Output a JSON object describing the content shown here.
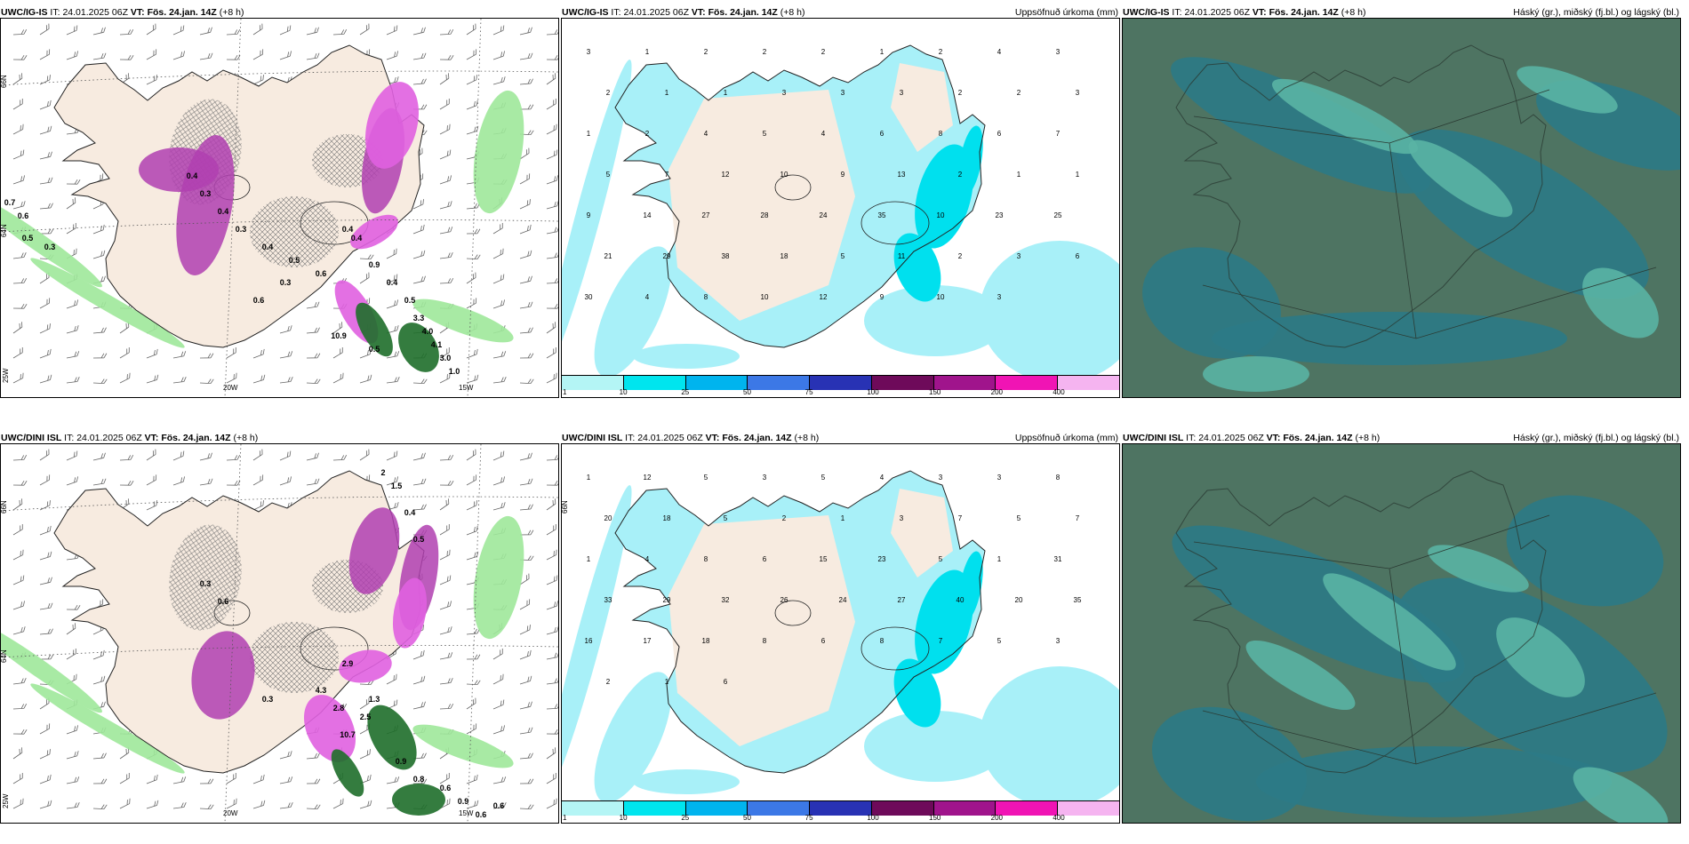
{
  "panels": {
    "ig_precip": {
      "model": "UWC/IG-IS",
      "it_label": "IT:",
      "it_value": "24.01.2025 06Z",
      "vt_label": "VT:",
      "vt_value": "Fös. 24.jan. 14Z",
      "lead": "(+8 h)"
    },
    "ig_accum": {
      "model": "UWC/IG-IS",
      "it_label": "IT:",
      "it_value": "24.01.2025 06Z",
      "vt_label": "VT:",
      "vt_value": "Fös. 24.jan. 14Z",
      "lead": "(+8 h)",
      "right_label": "Uppsöfnuð úrkoma (mm)"
    },
    "ig_cloud": {
      "model": "UWC/IG-IS",
      "it_label": "IT:",
      "it_value": "24.01.2025 06Z",
      "vt_label": "VT:",
      "vt_value": "Fös. 24.jan. 14Z",
      "lead": "(+8 h)",
      "right_label": "Háský (gr.), miðský (fj.bl.) og lágský (bl.)"
    },
    "dini_precip": {
      "model": "UWC/DINI ISL",
      "it_label": "IT:",
      "it_value": "24.01.2025 06Z",
      "vt_label": "VT:",
      "vt_value": "Fös. 24.jan. 14Z",
      "lead": "(+8 h)"
    },
    "dini_accum": {
      "model": "UWC/DINI ISL",
      "it_label": "IT:",
      "it_value": "24.01.2025 06Z",
      "vt_label": "VT:",
      "vt_value": "Fös. 24.jan. 14Z",
      "lead": "(+8 h)",
      "right_label": "Uppsöfnuð úrkoma (mm)"
    },
    "dini_cloud": {
      "model": "UWC/DINI ISL",
      "it_label": "IT:",
      "it_value": "24.01.2025 06Z",
      "vt_label": "VT:",
      "vt_value": "Fös. 24.jan. 14Z",
      "lead": "(+8 h)",
      "right_label": "Háský (gr.), miðský (fj.bl.) og lágský (bl.)"
    }
  },
  "grid_labels": {
    "lat66": "66N",
    "lat64": "64N",
    "lon20": "20W",
    "lon15": "15W",
    "lon25": "25W"
  },
  "colorbar": {
    "ticks": [
      "1",
      "10",
      "25",
      "50",
      "75",
      "100",
      "150",
      "200",
      "400"
    ],
    "colors": [
      "#b4f5f5",
      "#00e5ee",
      "#00b4ee",
      "#3c78e6",
      "#2832b4",
      "#6e0a5a",
      "#a0148c",
      "#f014b4",
      "#f5b4f0"
    ]
  },
  "colors": {
    "land": "#f7ebe0",
    "coast": "#222222",
    "precip_light": "#a8f0f8",
    "precip_mid": "#00e0ee",
    "snow_purple": "#b040b0",
    "snow_magenta": "#e060e0",
    "rain_green": "#9ee89a",
    "rain_dark": "#1e6e2a",
    "cloud_high": "#4e7462",
    "cloud_mid": "#2c7a86",
    "cloud_low": "#5ab4a4"
  },
  "accum_ig": [
    "3",
    "1",
    "2",
    "2",
    "2",
    "1",
    "2",
    "4",
    "3",
    "2",
    "1",
    "1",
    "3",
    "3",
    "3",
    "2",
    "2",
    "3",
    "1",
    "2",
    "4",
    "5",
    "4",
    "6",
    "8",
    "6",
    "7",
    "5",
    "7",
    "12",
    "10",
    "9",
    "13",
    "2",
    "1",
    "1",
    "9",
    "14",
    "27",
    "28",
    "24",
    "35",
    "10",
    "23",
    "25",
    "21",
    "29",
    "38",
    "18",
    "5",
    "11",
    "2",
    "3",
    "6",
    "30",
    "4",
    "8",
    "10",
    "12",
    "9",
    "10",
    "3"
  ],
  "accum_dini": [
    "1",
    "12",
    "5",
    "3",
    "5",
    "4",
    "3",
    "3",
    "8",
    "20",
    "18",
    "5",
    "2",
    "1",
    "3",
    "7",
    "5",
    "7",
    "1",
    "4",
    "8",
    "6",
    "15",
    "23",
    "5",
    "1",
    "31",
    "33",
    "29",
    "32",
    "26",
    "24",
    "27",
    "40",
    "20",
    "35",
    "16",
    "17",
    "18",
    "8",
    "6",
    "8",
    "7",
    "5",
    "3",
    "2",
    "1",
    "6"
  ],
  "precip_ig": [
    "0.7",
    "0.6",
    "0.5",
    "0.3",
    "0.4",
    "0.3",
    "0.4",
    "0.3",
    "0.4",
    "0.5",
    "0.6",
    "0.4",
    "0.9",
    "0.4",
    "0.5",
    "3.3",
    "4.0",
    "4.1",
    "3.0",
    "1.0",
    "0.5",
    "10.9",
    "0.4",
    "0.3",
    "0.6"
  ],
  "precip_dini": [
    "2",
    "1.5",
    "0.4",
    "0.5",
    "0.3",
    "0.6",
    "2.9",
    "4.3",
    "2.8",
    "2.5",
    "0.9",
    "0.8",
    "0.6",
    "0.9",
    "0.6",
    "0.6",
    "0.3",
    "10.7",
    "1.3"
  ]
}
